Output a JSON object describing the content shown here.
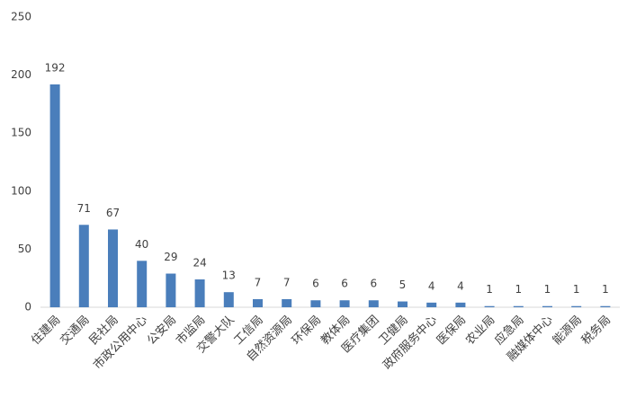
{
  "chart_data": {
    "type": "bar",
    "categories": [
      "住建局",
      "交通局",
      "民社局",
      "市政公用中心",
      "公安局",
      "市监局",
      "交警大队",
      "工信局",
      "自然资源局",
      "环保局",
      "教体局",
      "医疗集团",
      "卫健局",
      "政府服务中心",
      "医保局",
      "农业局",
      "应急局",
      "融媒体中心",
      "能源局",
      "税务局"
    ],
    "values": [
      192,
      71,
      67,
      40,
      29,
      24,
      13,
      7,
      7,
      6,
      6,
      6,
      5,
      4,
      4,
      1,
      1,
      1,
      1,
      1
    ],
    "color": "#4a7ebb",
    "ylim": [
      0,
      250
    ],
    "yticks": [
      0,
      50,
      100,
      150,
      200,
      250
    ],
    "grid": false,
    "data_labels": true
  }
}
